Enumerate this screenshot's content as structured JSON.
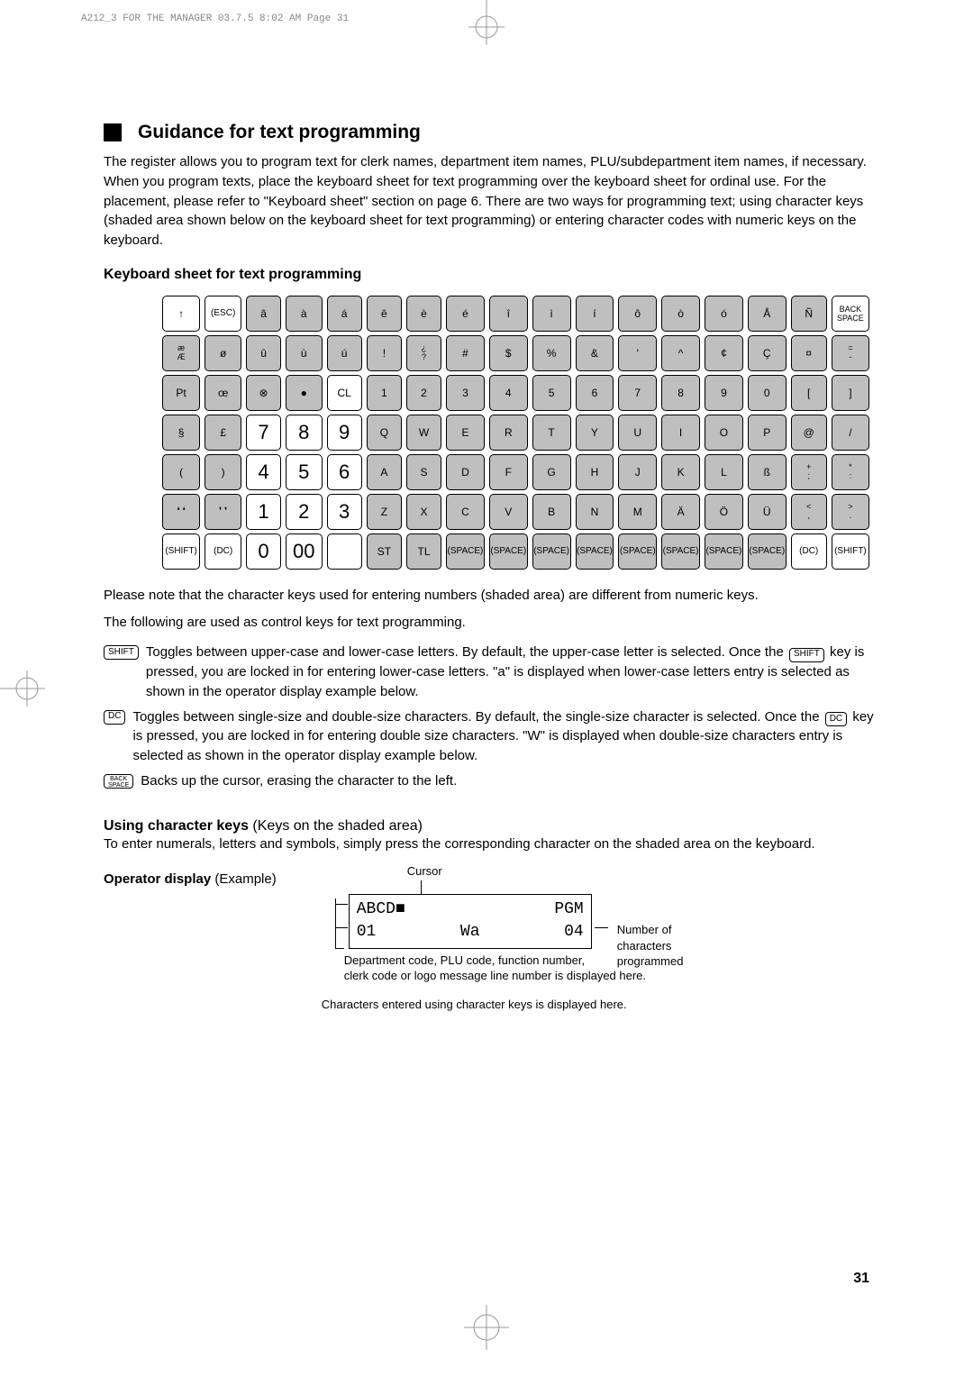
{
  "meta": {
    "header": "A212_3 FOR THE MANAGER  03.7.5 8:02 AM  Page 31"
  },
  "section": {
    "title": "Guidance for text programming",
    "intro": "The register allows you to program text for clerk names, department item names, PLU/subdepartment item names, if necessary.  When you program texts, place the keyboard sheet for text programming over the keyboard sheet for ordinal use.  For the placement, please refer to \"Keyboard sheet\" section on page 6. There are two ways for programming text; using character keys (shaded area shown below on the keyboard sheet for text programming) or entering character codes with numeric keys on the keyboard."
  },
  "keyboard": {
    "title": "Keyboard sheet for text programming",
    "rows": [
      [
        {
          "t": "↑",
          "cls": ""
        },
        {
          "t": "(ESC)",
          "cls": "small-text"
        },
        {
          "t": "â",
          "cls": "shaded"
        },
        {
          "t": "à",
          "cls": "shaded"
        },
        {
          "t": "á",
          "cls": "shaded"
        },
        {
          "t": "ê",
          "cls": "shaded"
        },
        {
          "t": "è",
          "cls": "shaded"
        },
        {
          "t": "é",
          "cls": "shaded"
        },
        {
          "t": "î",
          "cls": "shaded"
        },
        {
          "t": "ì",
          "cls": "shaded"
        },
        {
          "t": "í",
          "cls": "shaded"
        },
        {
          "t": "ô",
          "cls": "shaded"
        },
        {
          "t": "ò",
          "cls": "shaded"
        },
        {
          "t": "ó",
          "cls": "shaded"
        },
        {
          "t": "Å",
          "cls": "shaded"
        },
        {
          "t": "Ñ",
          "cls": "shaded"
        },
        {
          "t": "BACK\nSPACE",
          "cls": "two-line"
        }
      ],
      [
        {
          "t": "æ\nÆ",
          "cls": "shaded stacked"
        },
        {
          "t": "ø",
          "cls": "shaded"
        },
        {
          "t": "û",
          "cls": "shaded"
        },
        {
          "t": "ù",
          "cls": "shaded"
        },
        {
          "t": "ú",
          "cls": "shaded"
        },
        {
          "t": "!",
          "cls": "shaded"
        },
        {
          "t": "¿\n?",
          "cls": "shaded stacked"
        },
        {
          "t": "#",
          "cls": "shaded"
        },
        {
          "t": "$",
          "cls": "shaded"
        },
        {
          "t": "%",
          "cls": "shaded"
        },
        {
          "t": "&",
          "cls": "shaded"
        },
        {
          "t": "'",
          "cls": "shaded"
        },
        {
          "t": "^",
          "cls": "shaded"
        },
        {
          "t": "¢",
          "cls": "shaded"
        },
        {
          "t": "Ç",
          "cls": "shaded"
        },
        {
          "t": "¤",
          "cls": "shaded"
        },
        {
          "t": "=\n-",
          "cls": "shaded stacked"
        }
      ],
      [
        {
          "t": "Pt",
          "cls": "shaded"
        },
        {
          "t": "œ",
          "cls": "shaded"
        },
        {
          "t": "⊗",
          "cls": "shaded"
        },
        {
          "t": "●",
          "cls": "shaded"
        },
        {
          "t": "CL",
          "cls": ""
        },
        {
          "t": "1",
          "cls": "shaded"
        },
        {
          "t": "2",
          "cls": "shaded"
        },
        {
          "t": "3",
          "cls": "shaded"
        },
        {
          "t": "4",
          "cls": "shaded"
        },
        {
          "t": "5",
          "cls": "shaded"
        },
        {
          "t": "6",
          "cls": "shaded"
        },
        {
          "t": "7",
          "cls": "shaded"
        },
        {
          "t": "8",
          "cls": "shaded"
        },
        {
          "t": "9",
          "cls": "shaded"
        },
        {
          "t": "0",
          "cls": "shaded"
        },
        {
          "t": "[",
          "cls": "shaded"
        },
        {
          "t": "]",
          "cls": "shaded"
        }
      ],
      [
        {
          "t": "§",
          "cls": "shaded"
        },
        {
          "t": "£",
          "cls": "shaded"
        },
        {
          "t": "7",
          "cls": "numeric"
        },
        {
          "t": "8",
          "cls": "numeric"
        },
        {
          "t": "9",
          "cls": "numeric"
        },
        {
          "t": "Q",
          "cls": "shaded"
        },
        {
          "t": "W",
          "cls": "shaded"
        },
        {
          "t": "E",
          "cls": "shaded"
        },
        {
          "t": "R",
          "cls": "shaded"
        },
        {
          "t": "T",
          "cls": "shaded"
        },
        {
          "t": "Y",
          "cls": "shaded"
        },
        {
          "t": "U",
          "cls": "shaded"
        },
        {
          "t": "I",
          "cls": "shaded"
        },
        {
          "t": "O",
          "cls": "shaded"
        },
        {
          "t": "P",
          "cls": "shaded"
        },
        {
          "t": "@",
          "cls": "shaded"
        },
        {
          "t": "/",
          "cls": "shaded"
        }
      ],
      [
        {
          "t": "(",
          "cls": "shaded"
        },
        {
          "t": ")",
          "cls": "shaded"
        },
        {
          "t": "4",
          "cls": "numeric"
        },
        {
          "t": "5",
          "cls": "numeric"
        },
        {
          "t": "6",
          "cls": "numeric"
        },
        {
          "t": "A",
          "cls": "shaded"
        },
        {
          "t": "S",
          "cls": "shaded"
        },
        {
          "t": "D",
          "cls": "shaded"
        },
        {
          "t": "F",
          "cls": "shaded"
        },
        {
          "t": "G",
          "cls": "shaded"
        },
        {
          "t": "H",
          "cls": "shaded"
        },
        {
          "t": "J",
          "cls": "shaded"
        },
        {
          "t": "K",
          "cls": "shaded"
        },
        {
          "t": "L",
          "cls": "shaded"
        },
        {
          "t": "ß",
          "cls": "shaded"
        },
        {
          "t": "+\n;",
          "cls": "shaded stacked"
        },
        {
          "t": "*\n:",
          "cls": "shaded stacked"
        }
      ],
      [
        {
          "t": "❛ ❛",
          "cls": "shaded small-text"
        },
        {
          "t": "❜ ❜",
          "cls": "shaded small-text"
        },
        {
          "t": "1",
          "cls": "numeric"
        },
        {
          "t": "2",
          "cls": "numeric"
        },
        {
          "t": "3",
          "cls": "numeric"
        },
        {
          "t": "Z",
          "cls": "shaded"
        },
        {
          "t": "X",
          "cls": "shaded"
        },
        {
          "t": "C",
          "cls": "shaded"
        },
        {
          "t": "V",
          "cls": "shaded"
        },
        {
          "t": "B",
          "cls": "shaded"
        },
        {
          "t": "N",
          "cls": "shaded"
        },
        {
          "t": "M",
          "cls": "shaded"
        },
        {
          "t": "Ä",
          "cls": "shaded"
        },
        {
          "t": "Ö",
          "cls": "shaded"
        },
        {
          "t": "Ü",
          "cls": "shaded"
        },
        {
          "t": "<\n,",
          "cls": "shaded stacked"
        },
        {
          "t": ">\n.",
          "cls": "shaded stacked"
        }
      ],
      [
        {
          "t": "(SHIFT)",
          "cls": "small-text"
        },
        {
          "t": "(DC)",
          "cls": "small-text"
        },
        {
          "t": "0",
          "cls": "numeric"
        },
        {
          "t": "00",
          "cls": "numeric"
        },
        {
          "t": "",
          "cls": ""
        },
        {
          "t": "ST",
          "cls": "shaded"
        },
        {
          "t": "TL",
          "cls": "shaded"
        },
        {
          "t": "(SPACE)",
          "cls": "shaded small-text"
        },
        {
          "t": "(SPACE)",
          "cls": "shaded small-text"
        },
        {
          "t": "(SPACE)",
          "cls": "shaded small-text"
        },
        {
          "t": "(SPACE)",
          "cls": "shaded small-text"
        },
        {
          "t": "(SPACE)",
          "cls": "shaded small-text"
        },
        {
          "t": "(SPACE)",
          "cls": "shaded small-text"
        },
        {
          "t": "(SPACE)",
          "cls": "shaded small-text"
        },
        {
          "t": "(SPACE)",
          "cls": "shaded small-text"
        },
        {
          "t": "(DC)",
          "cls": "small-text"
        },
        {
          "t": "(SHIFT)",
          "cls": "small-text"
        }
      ]
    ]
  },
  "notes": {
    "note1": "Please note that the character keys used for entering numbers (shaded area) are different from numeric keys.",
    "note2": "The following are used as control keys for text programming."
  },
  "keyDefs": [
    {
      "key": "SHIFT",
      "text1": "Toggles between upper-case and lower-case letters.  By default, the upper-case letter is selected.  Once the ",
      "keyInline": "SHIFT",
      "text2": " key is pressed, you are locked in for entering lower-case letters.  \"a\" is displayed when lower-case letters entry is selected as shown in the operator display example below."
    },
    {
      "key": "DC",
      "text1": "Toggles between single-size and double-size characters.  By default, the single-size character is selected.  Once the ",
      "keyInline": "DC",
      "text2": " key is pressed, you are locked in for entering double size characters.  \"W\" is displayed when double-size characters entry is selected as shown in the operator display example below."
    },
    {
      "key": "BACK\nSPACE",
      "text1": "Backs up the cursor, erasing the character to the left.",
      "keyInline": "",
      "text2": ""
    }
  ],
  "charKeys": {
    "titleBold": "Using character keys",
    "titleRest": " (Keys on the shaded area)",
    "text": "To enter numerals, letters and symbols, simply press the corresponding character on the shaded area on the keyboard."
  },
  "display": {
    "labelBold": "Operator display",
    "labelRest": " (Example)",
    "cursorLabel": "Cursor",
    "lcdRow1Left": "ABCD■",
    "lcdRow1Right": "PGM",
    "lcdRow2Left": "01",
    "lcdRow2Mid": "Wa",
    "lcdRow2Right": "04",
    "annRight": "Number of characters programmed",
    "annBelow": "Department code, PLU code, function number,\nclerk code or logo message line number is displayed here.",
    "annBottom": "Characters entered using character keys is displayed here."
  },
  "pageNumber": "31"
}
